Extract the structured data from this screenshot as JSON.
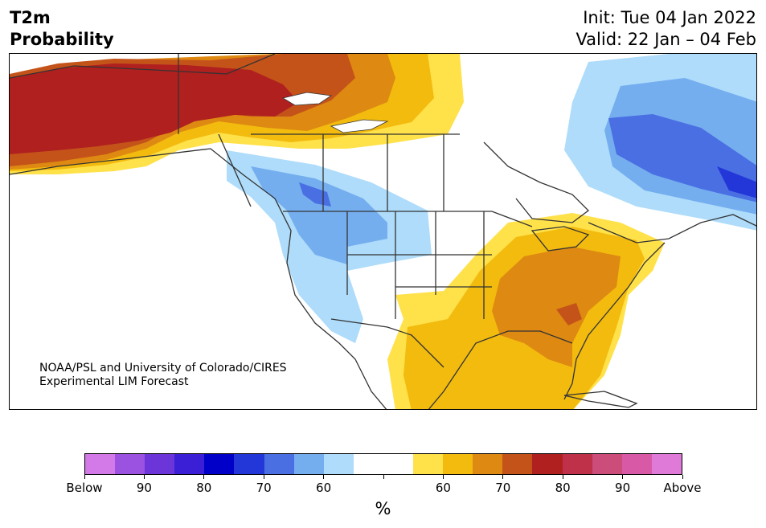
{
  "header": {
    "variable": "T2m",
    "product": "Probability",
    "init": "Init: Tue 04 Jan 2022",
    "valid": "Valid: 22 Jan – 04 Feb"
  },
  "credit": {
    "line1": "NOAA/PSL and University of Colorado/CIRES",
    "line2": "Experimental LIM Forecast"
  },
  "map": {
    "region": "North America",
    "features": [
      "coastlines",
      "US state borders",
      "Canadian province borders",
      "Mexico border"
    ],
    "probability_regions": [
      {
        "area": "Alaska and northern Yukon",
        "category": "above",
        "level": "70-80"
      },
      {
        "area": "Northwest Territories / Nunavut",
        "category": "above",
        "level": "60-70"
      },
      {
        "area": "Northern British Columbia / Alberta",
        "category": "above",
        "level": "50-60"
      },
      {
        "area": "Pacific Northwest and southern BC",
        "category": "below",
        "level": "60-70"
      },
      {
        "area": "US West coast and Great Basin",
        "category": "below",
        "level": "50-60"
      },
      {
        "area": "Quebec and Labrador",
        "category": "below",
        "level": "70-80"
      },
      {
        "area": "Northern Labrador coast",
        "category": "below",
        "level": "80-90"
      },
      {
        "area": "Hudson Bay east / Baffin",
        "category": "below",
        "level": "50-60"
      },
      {
        "area": "Southeast US",
        "category": "above",
        "level": "60-70"
      },
      {
        "area": "Ohio Valley / Mid-Atlantic",
        "category": "above",
        "level": "60-70"
      },
      {
        "area": "Southern Plains and Mexico",
        "category": "above",
        "level": "50-60"
      },
      {
        "area": "Georgia / South Carolina",
        "category": "above",
        "level": "70-80"
      }
    ]
  },
  "colorbar": {
    "colors": [
      "#d37ae8",
      "#9b52e0",
      "#6b35d9",
      "#3b1fd6",
      "#0000c8",
      "#2337d9",
      "#4a6fe3",
      "#74aeef",
      "#aedcfa",
      "#ffffff",
      "#ffffff",
      "#ffe14a",
      "#f2bb0e",
      "#de8912",
      "#c4531a",
      "#b0201f",
      "#bf3049",
      "#cc4c7a",
      "#d85aa6",
      "#e07ad8"
    ],
    "labels": [
      "Below",
      "90",
      "80",
      "70",
      "60",
      "60",
      "70",
      "80",
      "90",
      "Above"
    ],
    "unit": "%"
  }
}
